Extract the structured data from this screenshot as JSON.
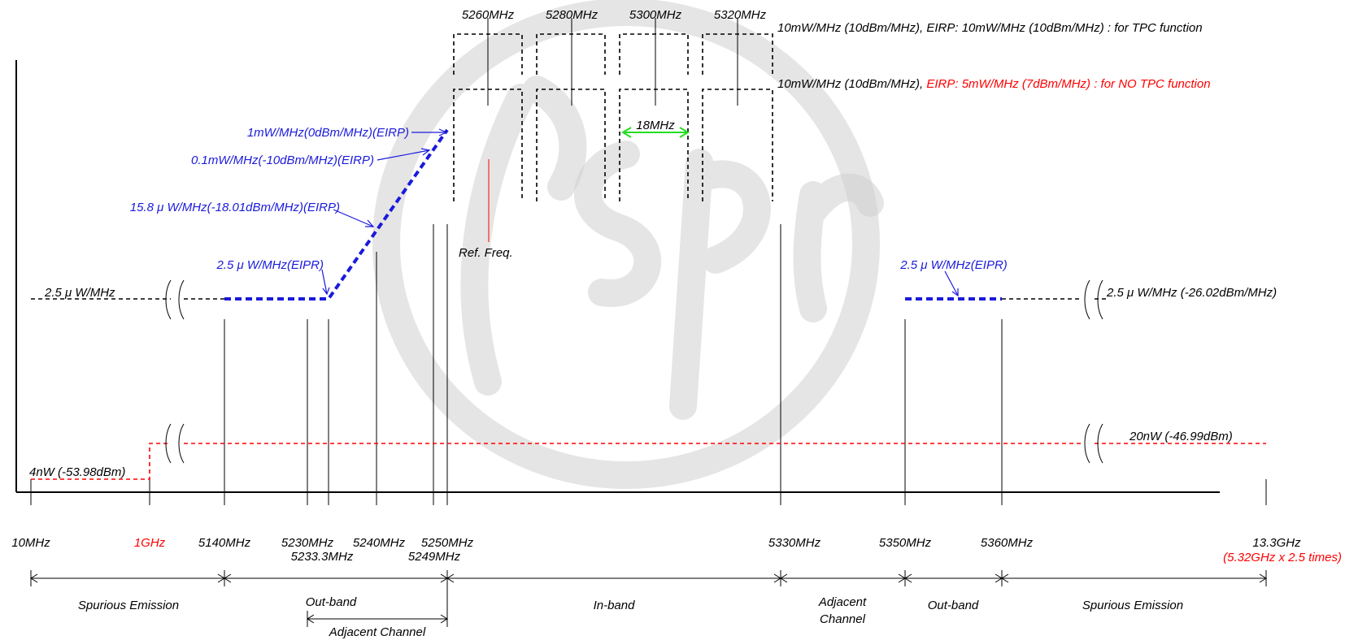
{
  "colors": {
    "black": "#000000",
    "blue": "#1a1adc",
    "red": "#ff0000",
    "green": "#22dd22",
    "watermark": "#d0d0d0"
  },
  "axis_labels": {
    "f10mhz": "10MHz",
    "f1ghz": "1GHz",
    "f5140": "5140MHz",
    "f5230": "5230MHz",
    "f5233": "5233.3MHz",
    "f5240": "5240MHz",
    "f5250": "5250MHz",
    "f5249": "5249MHz",
    "f5330": "5330MHz",
    "f5350": "5350MHz",
    "f5360": "5360MHz",
    "f13g": "13.3GHz",
    "f13g_note": "(5.32GHz x 2.5 times)"
  },
  "channels": [
    "5260MHz",
    "5280MHz",
    "5300MHz",
    "5320MHz"
  ],
  "power_notes": {
    "tpc_line": "10mW/MHz (10dBm/MHz), EIRP: 10mW/MHz (10dBm/MHz) : for TPC function",
    "notpc_prefix": "10mW/MHz (10dBm/MHz), ",
    "notpc_red": "EIRP: 5mW/MHz (7dBm/MHz) : for NO TPC function",
    "bw": "18MHz",
    "ref_freq": "Ref. Freq."
  },
  "blue_labels": {
    "l1": "1mW/MHz(0dBm/MHz)(EIRP)",
    "l2": "0.1mW/MHz(-10dBm/MHz)(EIRP)",
    "l3": "15.8 μ W/MHz(-18.01dBm/MHz)(EIRP)",
    "l4": "2.5 μ W/MHz(EIPR)",
    "l5": "2.5 μ W/MHz(EIPR)"
  },
  "black_levels": {
    "left": "2.5 μ W/MHz",
    "right": "2.5 μ W/MHz (-26.02dBm/MHz)"
  },
  "red_levels": {
    "left": "4nW (-53.98dBm)",
    "right": "20nW (-46.99dBm)"
  },
  "regions": {
    "spur_left": "Spurious Emission",
    "outband_left": "Out-band",
    "adjacent_left": "Adjacent Channel",
    "inband": "In-band",
    "adjacent_right_1": "Adjacent",
    "adjacent_right_2": "Channel",
    "outband_right": "Out-band",
    "spur_right": "Spurious Emission"
  }
}
